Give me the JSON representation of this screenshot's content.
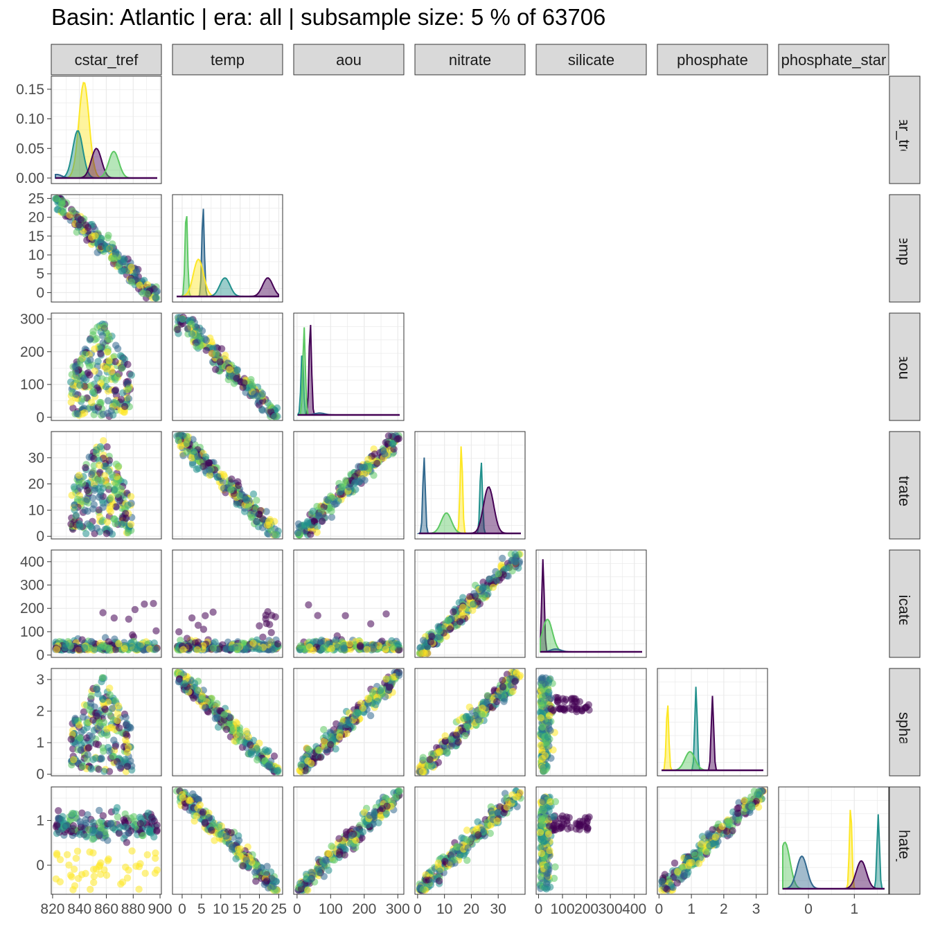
{
  "title": "Basin: Atlantic | era: all | subsample size: 5 % of 63706",
  "chart_data": {
    "type": "scatter-matrix",
    "title": "Basin: Atlantic | era: all | subsample size: 5 % of 63706",
    "variables": [
      "cstar_tref",
      "temp",
      "aou",
      "nitrate",
      "silicate",
      "phosphate",
      "phosphate_star"
    ],
    "upper_triangle": "blank",
    "diagonal": "density",
    "lower_triangle": "scatter",
    "color_scale": "viridis (color by gamma depth slab)",
    "colors": {
      "dark": "#440154",
      "mid": "#31688E",
      "teal": "#21908C",
      "green": "#5DC863",
      "yellow": "#FDE725"
    },
    "ranges": {
      "cstar_tref": [
        819,
        901
      ],
      "temp": [
        -2.5,
        26
      ],
      "aou": [
        -10,
        318
      ],
      "nitrate": [
        -1,
        40
      ],
      "silicate": [
        -10,
        450
      ],
      "phosphate": [
        -0.05,
        3.35
      ],
      "phosphate_star": [
        -0.65,
        1.75
      ]
    },
    "density_ylim": [
      0,
      0.165
    ],
    "x_ticks": {
      "cstar_tref": [
        "820",
        "840",
        "860",
        "880",
        "900"
      ],
      "temp": [
        "0",
        "5",
        "10",
        "15",
        "20",
        "25"
      ],
      "aou": [
        "0",
        "100",
        "200",
        "300"
      ],
      "nitrate": [
        "0",
        "10",
        "20",
        "30"
      ],
      "silicate": [
        "0",
        "100",
        "200",
        "300",
        "400"
      ],
      "phosphate": [
        "0",
        "1",
        "2",
        "3"
      ],
      "phosphate_star": [
        "0",
        "1"
      ]
    },
    "y_ticks": {
      "cstar_tref": [
        "0.00",
        "0.05",
        "0.10",
        "0.15"
      ],
      "temp": [
        "0",
        "5",
        "10",
        "15",
        "20",
        "25"
      ],
      "aou": [
        "0",
        "100",
        "200",
        "300"
      ],
      "nitrate": [
        "0",
        "10",
        "20",
        "30"
      ],
      "silicate": [
        "0",
        "100",
        "200",
        "300",
        "400"
      ],
      "phosphate": [
        "0",
        "1",
        "2",
        "3"
      ],
      "phosphate_star": [
        "0",
        "1"
      ]
    },
    "density_peaks": {
      "cstar_tref": [
        [
          842,
          0.162
        ],
        [
          837,
          0.08
        ],
        [
          852,
          0.05
        ],
        [
          866,
          0.045
        ],
        [
          820,
          0.006
        ]
      ],
      "temp": [
        [
          0.2,
          0.95
        ],
        [
          4.9,
          0.97
        ],
        [
          3.6,
          0.4
        ],
        [
          11,
          0.2
        ],
        [
          23,
          0.2
        ]
      ],
      "aou": [
        [
          4,
          0.7
        ],
        [
          30,
          1.0
        ],
        [
          10,
          0.95
        ],
        [
          60,
          0.02
        ]
      ],
      "nitrate": [
        [
          1,
          0.82
        ],
        [
          16,
          0.95
        ],
        [
          24,
          0.78
        ],
        [
          27,
          0.5
        ],
        [
          10,
          0.22
        ]
      ],
      "silicate": [
        [
          2,
          1.0
        ],
        [
          22,
          0.35
        ],
        [
          60,
          0.03
        ]
      ],
      "phosphate": [
        [
          0.15,
          0.73
        ],
        [
          1.1,
          0.9
        ],
        [
          1.65,
          0.8
        ],
        [
          0.9,
          0.2
        ]
      ],
      "phosphate_star": [
        [
          -0.6,
          0.5
        ],
        [
          -0.2,
          0.35
        ],
        [
          0.95,
          0.9
        ],
        [
          1.6,
          0.8
        ],
        [
          1.2,
          0.3
        ]
      ]
    }
  }
}
